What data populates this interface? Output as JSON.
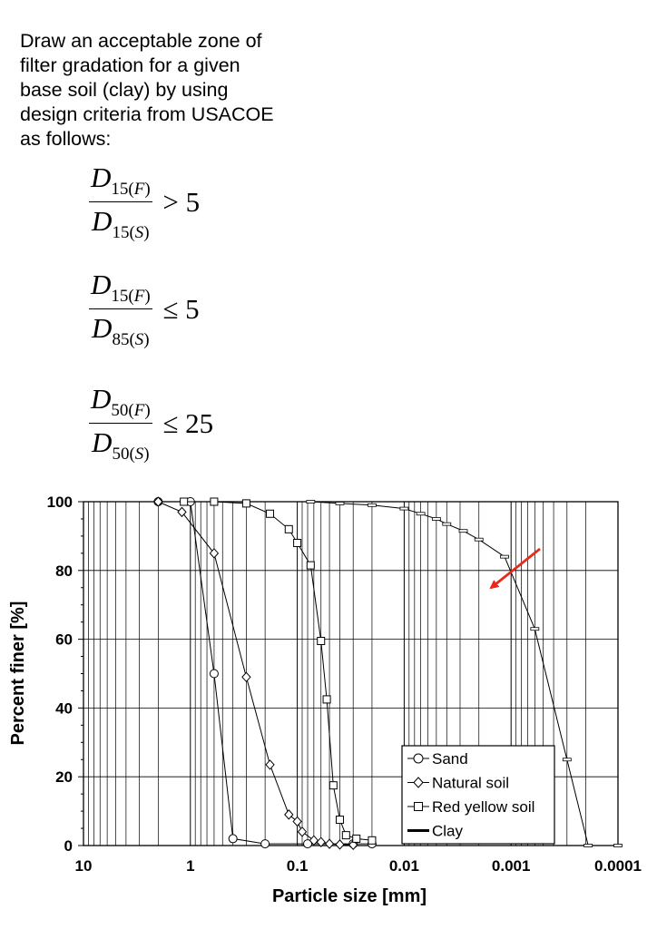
{
  "prompt": {
    "lines": [
      "Draw an acceptable zone of",
      "filter gradation for a given",
      "base soil (clay) by using",
      "design criteria from USACOE",
      "as follows:"
    ]
  },
  "formulas": [
    {
      "num_base": "D",
      "num_sub": "15",
      "num_letter": "F",
      "den_base": "D",
      "den_sub": "15",
      "den_letter": "S",
      "relation": ">",
      "value": "5"
    },
    {
      "num_base": "D",
      "num_sub": "15",
      "num_letter": "F",
      "den_base": "D",
      "den_sub": "85",
      "den_letter": "S",
      "relation": "≤",
      "value": "5"
    },
    {
      "num_base": "D",
      "num_sub": "50",
      "num_letter": "F",
      "den_base": "D",
      "den_sub": "50",
      "den_letter": "S",
      "relation": "≤",
      "value": "25"
    }
  ],
  "chart_data": {
    "type": "line",
    "xlabel": "Particle size [mm]",
    "ylabel": "Percent finer [%]",
    "x_scale": "log",
    "x_reversed": true,
    "xlim": [
      10,
      0.0001
    ],
    "ylim": [
      0,
      100
    ],
    "x_ticks": [
      10,
      1,
      0.1,
      0.01,
      0.001,
      0.0001
    ],
    "x_tick_labels": [
      "10",
      "1",
      "0.1",
      "0.01",
      "0.001",
      "0.0001"
    ],
    "y_ticks": [
      0,
      20,
      40,
      60,
      80,
      100
    ],
    "y_tick_labels": [
      "0",
      "20",
      "40",
      "60",
      "80",
      "100"
    ],
    "grid": true,
    "legend": {
      "position": "bottom-right"
    },
    "series": [
      {
        "name": "Sand",
        "marker": "circle",
        "x": [
          2,
          1,
          0.6,
          0.4,
          0.2,
          0.08,
          0.03,
          0.02
        ],
        "y": [
          100,
          100,
          50,
          2,
          0.5,
          0.5,
          0.5,
          0.5
        ]
      },
      {
        "name": "Natural soil",
        "marker": "diamond",
        "x": [
          2,
          1.2,
          0.6,
          0.3,
          0.18,
          0.12,
          0.1,
          0.09,
          0.07,
          0.06,
          0.05,
          0.04,
          0.03
        ],
        "y": [
          100,
          97,
          85,
          49,
          23.5,
          9,
          7,
          4,
          1.5,
          1,
          0.5,
          0.3,
          0.2
        ]
      },
      {
        "name": "Red yellow soil",
        "marker": "square",
        "x": [
          1.15,
          0.6,
          0.3,
          0.18,
          0.12,
          0.1,
          0.075,
          0.06,
          0.053,
          0.046,
          0.04,
          0.035,
          0.028,
          0.02
        ],
        "y": [
          100,
          100,
          99.5,
          96.5,
          92,
          88,
          81.5,
          59.5,
          42.5,
          17.5,
          7.5,
          3,
          2,
          1.5
        ]
      },
      {
        "name": "Clay",
        "marker": "dash",
        "x": [
          0.075,
          0.04,
          0.02,
          0.01,
          0.007,
          0.005,
          0.004,
          0.0028,
          0.002,
          0.00115,
          0.0006,
          0.0003,
          0.00019,
          0.0001
        ],
        "y": [
          100,
          99.5,
          99,
          98,
          96.5,
          95,
          93.5,
          91.5,
          89,
          84,
          63,
          25,
          0,
          0
        ]
      }
    ]
  }
}
